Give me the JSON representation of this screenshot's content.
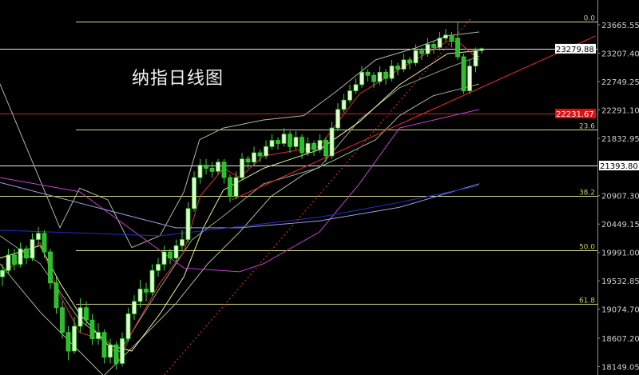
{
  "chart_data": {
    "type": "candlestick",
    "title": "纳指日线图",
    "xlim": [
      -0.5,
      100
    ],
    "ylim": [
      18013,
      24066
    ],
    "grid": false,
    "colors": {
      "background": "#000000",
      "bull_fill": "#e6ffd0",
      "bear_fill": "#2bbf2b",
      "candle_outline": "#3ccf3c",
      "fib": "#d8d890",
      "fib_label": "#c8c870",
      "axis_text": "#d0d0d0",
      "axis_line": "#909090"
    },
    "price_axis_ticks": [
      "23665.55",
      "23207.40",
      "22749.25",
      "22291.10",
      "21832.95",
      "20907.30",
      "20449.15",
      "19991.00",
      "19532.85",
      "19074.70",
      "18607.20",
      "18149.05"
    ],
    "price_labels": [
      {
        "value": "23279.88",
        "style": "white-box"
      },
      {
        "value": "21393.80",
        "style": "white-box"
      },
      {
        "value": "22231.67",
        "style": "red-box"
      }
    ],
    "horizontal_lines": [
      {
        "price": 23279.88,
        "color": "#e8e8e8"
      },
      {
        "price": 21393.8,
        "color": "#e8e8e8"
      },
      {
        "price": 22231.67,
        "color": "#d02020"
      }
    ],
    "fibonacci": [
      {
        "label": "0.0",
        "price": 23717,
        "partial": true
      },
      {
        "label": "23.6",
        "price": 21975,
        "partial": true
      },
      {
        "label": "38.2",
        "price": 20904,
        "partial": false
      },
      {
        "label": "50.0",
        "price": 20026,
        "partial": true
      },
      {
        "label": "61.8",
        "price": 19161,
        "partial": true
      }
    ],
    "candles": [
      [
        19600,
        19800,
        19450,
        19700
      ],
      [
        19700,
        20050,
        19650,
        19950
      ],
      [
        19950,
        20050,
        19700,
        19800
      ],
      [
        19800,
        20150,
        19750,
        20050
      ],
      [
        20050,
        20100,
        19800,
        19900
      ],
      [
        19900,
        20300,
        19850,
        20200
      ],
      [
        20200,
        20400,
        20100,
        20300
      ],
      [
        20300,
        20350,
        19900,
        20000
      ],
      [
        20000,
        20050,
        19400,
        19500
      ],
      [
        19500,
        19600,
        19000,
        19100
      ],
      [
        19100,
        19200,
        18600,
        18700
      ],
      [
        18700,
        18800,
        18250,
        18400
      ],
      [
        18400,
        18950,
        18350,
        18800
      ],
      [
        18800,
        19250,
        18700,
        19100
      ],
      [
        19100,
        19200,
        18800,
        18900
      ],
      [
        18900,
        19000,
        18500,
        18600
      ],
      [
        18600,
        18850,
        18500,
        18700
      ],
      [
        18700,
        18750,
        18200,
        18300
      ],
      [
        18300,
        18600,
        18200,
        18500
      ],
      [
        18500,
        18550,
        18100,
        18200
      ],
      [
        18200,
        18700,
        18150,
        18600
      ],
      [
        18600,
        19100,
        18550,
        19000
      ],
      [
        19000,
        19300,
        18900,
        19200
      ],
      [
        19200,
        19550,
        19100,
        19400
      ],
      [
        19400,
        19500,
        19200,
        19350
      ],
      [
        19350,
        19800,
        19300,
        19700
      ],
      [
        19700,
        19900,
        19600,
        19800
      ],
      [
        19800,
        20100,
        19700,
        20000
      ],
      [
        20000,
        20050,
        19800,
        19900
      ],
      [
        19900,
        20200,
        19850,
        20100
      ],
      [
        20100,
        20350,
        20000,
        20200
      ],
      [
        20200,
        20800,
        20150,
        20700
      ],
      [
        20700,
        21300,
        20650,
        21200
      ],
      [
        21200,
        21500,
        21100,
        21400
      ],
      [
        21400,
        21500,
        21250,
        21350
      ],
      [
        21350,
        21450,
        21200,
        21300
      ],
      [
        21300,
        21500,
        21250,
        21450
      ],
      [
        21450,
        21500,
        21100,
        21200
      ],
      [
        21200,
        21250,
        20800,
        20900
      ],
      [
        20900,
        21300,
        20850,
        21200
      ],
      [
        21200,
        21600,
        21150,
        21500
      ],
      [
        21500,
        21550,
        21350,
        21450
      ],
      [
        21450,
        21700,
        21400,
        21600
      ],
      [
        21600,
        21650,
        21450,
        21550
      ],
      [
        21550,
        21800,
        21500,
        21700
      ],
      [
        21700,
        21900,
        21650,
        21800
      ],
      [
        21800,
        21850,
        21650,
        21750
      ],
      [
        21750,
        22000,
        21700,
        21900
      ],
      [
        21900,
        21950,
        21600,
        21700
      ],
      [
        21700,
        21950,
        21650,
        21850
      ],
      [
        21850,
        21900,
        21500,
        21600
      ],
      [
        21600,
        21850,
        21550,
        21750
      ],
      [
        21750,
        21800,
        21550,
        21650
      ],
      [
        21650,
        21900,
        21600,
        21800
      ],
      [
        21800,
        21850,
        21450,
        21550
      ],
      [
        21550,
        22100,
        21500,
        22000
      ],
      [
        22000,
        22400,
        21950,
        22300
      ],
      [
        22300,
        22550,
        22250,
        22450
      ],
      [
        22450,
        22700,
        22400,
        22600
      ],
      [
        22600,
        22800,
        22550,
        22700
      ],
      [
        22700,
        23000,
        22650,
        22900
      ],
      [
        22900,
        22950,
        22750,
        22850
      ],
      [
        22850,
        22900,
        22650,
        22750
      ],
      [
        22750,
        23000,
        22700,
        22900
      ],
      [
        22900,
        22950,
        22700,
        22800
      ],
      [
        22800,
        23100,
        22750,
        23000
      ],
      [
        23000,
        23050,
        22850,
        22950
      ],
      [
        22950,
        23200,
        22900,
        23100
      ],
      [
        23100,
        23150,
        22950,
        23050
      ],
      [
        23050,
        23350,
        23000,
        23250
      ],
      [
        23250,
        23300,
        23100,
        23200
      ],
      [
        23200,
        23450,
        23150,
        23350
      ],
      [
        23350,
        23400,
        23200,
        23300
      ],
      [
        23300,
        23550,
        23250,
        23450
      ],
      [
        23450,
        23600,
        23400,
        23500
      ],
      [
        23500,
        23550,
        23300,
        23400
      ],
      [
        23450,
        23720,
        23100,
        23150
      ],
      [
        23150,
        23200,
        22550,
        22600
      ],
      [
        22600,
        23100,
        22550,
        23000
      ],
      [
        23000,
        23300,
        22900,
        23250
      ],
      [
        23250,
        23300,
        23200,
        23280
      ]
    ],
    "indicators": [
      {
        "color": "#a8b8a0",
        "points": [
          [
            -0.4,
            22710
          ],
          [
            9.6,
            20390
          ],
          [
            12.9,
            21030
          ],
          [
            17.6,
            20840
          ],
          [
            21.6,
            20070
          ],
          [
            26.3,
            20260
          ],
          [
            30.3,
            20970
          ],
          [
            32.9,
            21810
          ],
          [
            36.9,
            22000
          ],
          [
            43.6,
            22130
          ],
          [
            50.3,
            22200
          ],
          [
            55.6,
            22580
          ],
          [
            62.3,
            23100
          ],
          [
            68.9,
            23290
          ],
          [
            74.3,
            23490
          ],
          [
            79.6,
            23550
          ]
        ]
      },
      {
        "color": "#a8b8a0",
        "points": [
          [
            -0.4,
            19810
          ],
          [
            6.3,
            19030
          ],
          [
            12.9,
            18390
          ],
          [
            16.9,
            18000
          ],
          [
            23.6,
            18640
          ],
          [
            28.9,
            19160
          ],
          [
            34.3,
            19810
          ],
          [
            39.6,
            20320
          ],
          [
            44.9,
            20900
          ],
          [
            50.3,
            21250
          ],
          [
            55.6,
            21490
          ],
          [
            62.3,
            21810
          ],
          [
            66.3,
            22200
          ],
          [
            71.9,
            22520
          ],
          [
            79.6,
            22710
          ]
        ]
      },
      {
        "color": "#90a890",
        "points": [
          [
            -0.4,
            20260
          ],
          [
            6.3,
            19810
          ],
          [
            12.9,
            18900
          ],
          [
            19.6,
            18390
          ],
          [
            26.3,
            19420
          ],
          [
            31.6,
            20190
          ],
          [
            36.9,
            20580
          ],
          [
            43.6,
            21100
          ],
          [
            52.9,
            21360
          ],
          [
            59.6,
            22130
          ],
          [
            66.3,
            22650
          ],
          [
            74.3,
            22970
          ],
          [
            79.6,
            23160
          ]
        ]
      },
      {
        "color": "#f0f0a0",
        "points": [
          [
            -0.4,
            19900
          ],
          [
            6.3,
            20100
          ],
          [
            9.6,
            19500
          ],
          [
            12.9,
            19000
          ],
          [
            17.6,
            18500
          ],
          [
            21.6,
            18400
          ],
          [
            26.3,
            19000
          ],
          [
            30.3,
            19600
          ],
          [
            33.6,
            20400
          ],
          [
            36.9,
            21000
          ],
          [
            43.6,
            21350
          ],
          [
            52.9,
            21650
          ],
          [
            59.6,
            22100
          ],
          [
            66.3,
            22700
          ],
          [
            74.3,
            23200
          ],
          [
            79.6,
            23250
          ]
        ]
      },
      {
        "color": "#e03030",
        "points": [
          [
            -0.4,
            19600
          ],
          [
            6.3,
            20150
          ],
          [
            9.6,
            19300
          ],
          [
            12.9,
            18700
          ],
          [
            17.6,
            18550
          ],
          [
            19.6,
            18250
          ],
          [
            21.6,
            18700
          ],
          [
            26.3,
            19500
          ],
          [
            30.3,
            20000
          ],
          [
            33,
            20900
          ],
          [
            36.9,
            21350
          ],
          [
            39.6,
            21200
          ],
          [
            43.6,
            21550
          ],
          [
            52.9,
            21700
          ],
          [
            59.6,
            22550
          ],
          [
            66.3,
            22950
          ],
          [
            74.3,
            23400
          ],
          [
            76,
            23400
          ],
          [
            79.6,
            23100
          ]
        ]
      },
      {
        "color": "#c040d0",
        "points": [
          [
            -0.4,
            21200
          ],
          [
            12.9,
            20970
          ],
          [
            30.3,
            19740
          ],
          [
            39.6,
            19680
          ],
          [
            43.6,
            19810
          ],
          [
            52.9,
            20320
          ],
          [
            59.6,
            21100
          ],
          [
            66.3,
            22000
          ],
          [
            79.6,
            22300
          ]
        ]
      },
      {
        "color": "#9a9ae0",
        "points": [
          [
            -0.4,
            21120
          ],
          [
            28.9,
            20390
          ],
          [
            39.6,
            20390
          ],
          [
            52.9,
            20500
          ],
          [
            66.3,
            20720
          ],
          [
            79.6,
            21100
          ]
        ]
      },
      {
        "color": "#2030c0",
        "points": [
          [
            -0.4,
            20350
          ],
          [
            26.3,
            20260
          ],
          [
            39.6,
            20410
          ],
          [
            52.9,
            20560
          ],
          [
            66.3,
            20800
          ],
          [
            79.6,
            21070
          ]
        ]
      }
    ],
    "trendlines": [
      {
        "color": "#d02828",
        "dashed": false,
        "points": [
          [
            38.3,
            20840
          ],
          [
            99,
            23485
          ]
        ]
      },
      {
        "color": "#d02828",
        "dashed": true,
        "points": [
          [
            27,
            18013
          ],
          [
            78.3,
            23780
          ]
        ]
      }
    ]
  }
}
